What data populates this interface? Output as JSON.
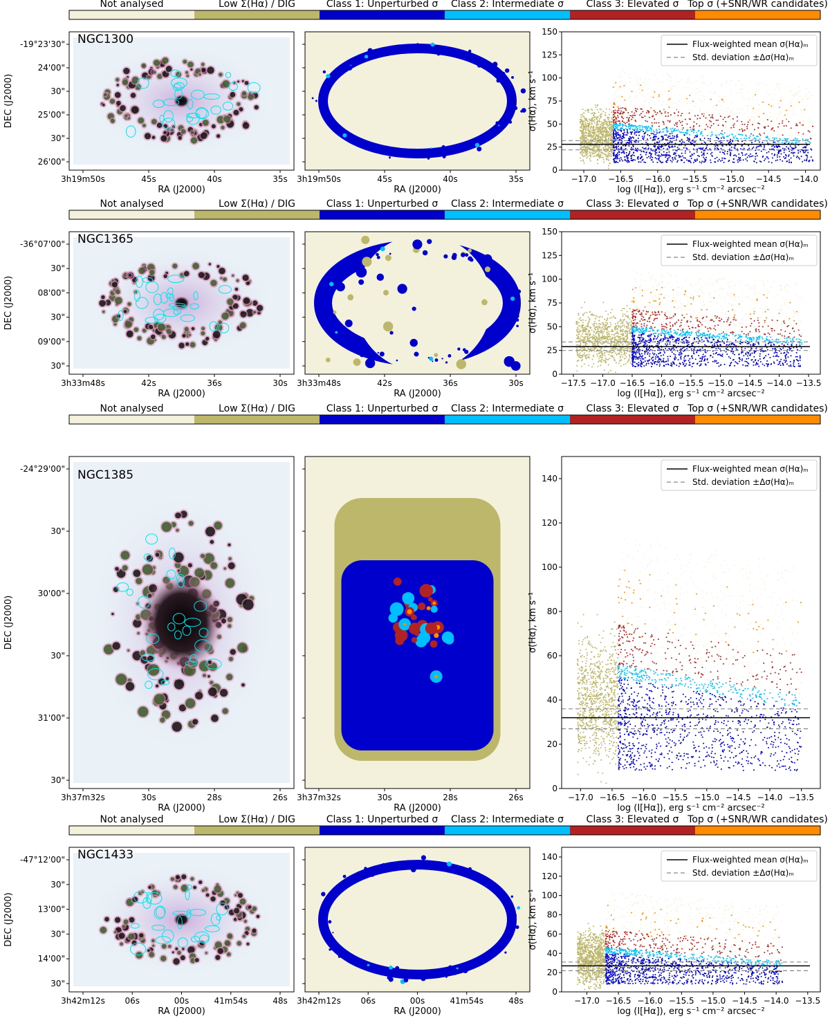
{
  "legend": {
    "categories": [
      {
        "label": "Not analysed",
        "color": "#f3f1dc"
      },
      {
        "label": "Low Σ(Hα) / DIG",
        "color": "#bdb76b"
      },
      {
        "label": "Class 1: Unperturbed σ",
        "color": "#0000cd"
      },
      {
        "label": "Class 2: Intermediate σ",
        "color": "#00bfff"
      },
      {
        "label": "Class 3: Elevated σ",
        "color": "#b22222"
      },
      {
        "label": "Top σ (+SNR/WR candidates)",
        "color": "#ff8c00"
      }
    ]
  },
  "axes_labels": {
    "ra": "RA (J2000)",
    "dec": "DEC (J2000)",
    "sigma": "σ(Hα), km s⁻¹",
    "flux": "log (I[Hα]), erg s⁻¹ cm⁻² arcsec⁻²",
    "legend_mean": "Flux-weighted mean σ(Hα)ₘ",
    "legend_std": "Std. deviation ±Δσ(Hα)ₘ"
  },
  "chart_data": [
    {
      "type": "scatter",
      "galaxy": "NGC1300",
      "xlim": [
        -17.3,
        -13.8
      ],
      "ylim": [
        0,
        150
      ],
      "xticks": [
        -17.0,
        -16.5,
        -16.0,
        -15.5,
        -15.0,
        -14.5,
        -14.0
      ],
      "yticks": [
        0,
        25,
        50,
        75,
        100,
        125,
        150
      ],
      "dig_cut": -16.6,
      "mean": 28,
      "std_lo": 22,
      "std_hi": 32,
      "base_at_dig_cut": 45,
      "base_at_right": 27,
      "xmax": -13.9,
      "ra_ticks": [
        "3h19m50s",
        "45s",
        "40s",
        "35s"
      ],
      "dec_ticks": [
        "-19°23'30\"",
        "24'00\"",
        "30\"",
        "25'00\"",
        "30\"",
        "26'00\""
      ]
    },
    {
      "type": "scatter",
      "galaxy": "NGC1365",
      "xlim": [
        -17.7,
        -13.3
      ],
      "ylim": [
        0,
        150
      ],
      "xticks": [
        -17.5,
        -17.0,
        -16.5,
        -16.0,
        -15.5,
        -15.0,
        -14.5,
        -14.0,
        -13.5
      ],
      "yticks": [
        0,
        25,
        50,
        75,
        100,
        125,
        150
      ],
      "dig_cut": -16.5,
      "mean": 29,
      "std_lo": 25,
      "std_hi": 34,
      "base_at_dig_cut": 44,
      "base_at_right": 31,
      "xmax": -13.6,
      "ra_ticks": [
        "3h33m48s",
        "42s",
        "36s",
        "30s"
      ],
      "dec_ticks": [
        "-36°07'00\"",
        "30\"",
        "08'00\"",
        "30\"",
        "09'00\"",
        "30\""
      ]
    },
    {
      "type": "scatter",
      "galaxy": "NGC1385",
      "xlim": [
        -17.3,
        -13.2
      ],
      "ylim": [
        0,
        150
      ],
      "xticks": [
        -17.0,
        -16.5,
        -16.0,
        -15.5,
        -15.0,
        -14.5,
        -14.0,
        -13.5
      ],
      "yticks": [
        0,
        20,
        40,
        60,
        80,
        100,
        120,
        140
      ],
      "dig_cut": -16.4,
      "mean": 32,
      "std_lo": 27,
      "std_hi": 36,
      "base_at_dig_cut": 50,
      "base_at_right": 36,
      "xmax": -13.5,
      "ra_ticks": [
        "3h37m32s",
        "30s",
        "28s",
        "26s"
      ],
      "dec_ticks": [
        "-24°29'00\"",
        "30\"",
        "30'00\"",
        "30\"",
        "31'00\"",
        "30\""
      ]
    },
    {
      "type": "scatter",
      "galaxy": "NGC1433",
      "xlim": [
        -17.4,
        -13.3
      ],
      "ylim": [
        0,
        150
      ],
      "xticks": [
        -17.0,
        -16.5,
        -16.0,
        -15.5,
        -15.0,
        -14.5,
        -14.0,
        -13.5
      ],
      "yticks": [
        0,
        20,
        40,
        60,
        80,
        100,
        120,
        140
      ],
      "dig_cut": -16.7,
      "mean": 27,
      "std_lo": 22,
      "std_hi": 31,
      "base_at_dig_cut": 40,
      "base_at_right": 26,
      "xmax": -13.9,
      "ra_ticks": [
        "3h42m12s",
        "06s",
        "00s",
        "41m54s",
        "48s"
      ],
      "dec_ticks": [
        "-47°12'00\"",
        "30\"",
        "13'00\"",
        "30\"",
        "14'00\"",
        "30\""
      ]
    }
  ]
}
